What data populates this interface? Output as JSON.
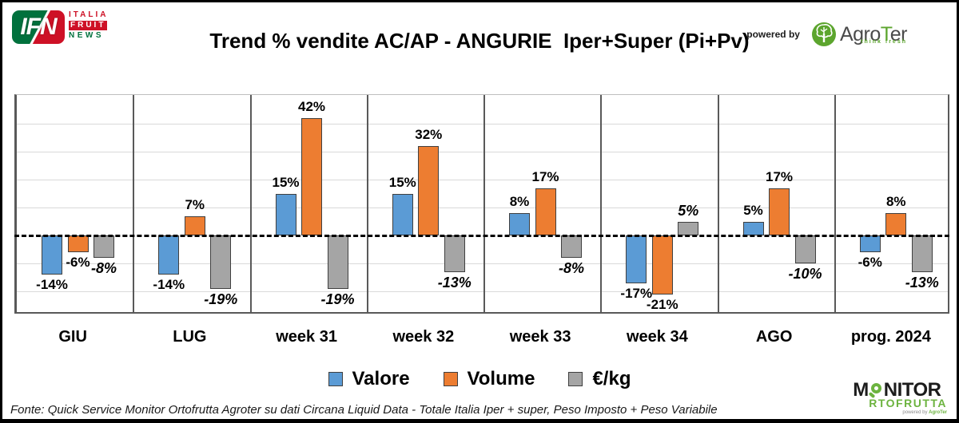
{
  "header": {
    "title": "Trend % vendite AC/AP - ANGURIE  Iper+Super (Pi+Pv)",
    "powered_by": "powered by",
    "ifn": {
      "abbr": "IFN",
      "line1": "ITALIA",
      "line2": "FRUIT",
      "line3": "NEWS"
    },
    "agroter": {
      "name_prefix": "Agro",
      "name_t": "T",
      "name_suffix": "er",
      "tagline": "think fresh"
    }
  },
  "chart_data": {
    "type": "bar",
    "title": "Trend % vendite AC/AP - ANGURIE  Iper+Super (Pi+Pv)",
    "categories": [
      "GIU",
      "LUG",
      "week 31",
      "week 32",
      "week 33",
      "week 34",
      "AGO",
      "prog. 2024"
    ],
    "series": [
      {
        "name": "Valore",
        "color": "#5B9BD5",
        "values": [
          -14,
          -14,
          15,
          15,
          8,
          -17,
          5,
          -6
        ]
      },
      {
        "name": "Volume",
        "color": "#ED7D31",
        "values": [
          -6,
          7,
          42,
          32,
          17,
          -21,
          17,
          8
        ]
      },
      {
        "name": "€/kg",
        "color": "#A5A5A5",
        "values": [
          -8,
          -19,
          -19,
          -13,
          -8,
          5,
          -10,
          -13
        ],
        "label_style": "italic"
      }
    ],
    "value_suffix": "%",
    "ylim": [
      -28,
      50
    ],
    "gridline_step": 10,
    "gridlines": [
      40,
      30,
      20,
      10,
      -10,
      -20
    ],
    "zero_line": "dashed",
    "grid": true,
    "legend_position": "bottom",
    "bar_border_color": "#404040"
  },
  "footer": {
    "source": "Fonte: Quick Service Monitor Ortofrutta Agroter su dati Circana Liquid Data - Totale Italia Iper + super, Peso Imposto + Peso Variabile"
  },
  "monitor": {
    "line1_m": "M",
    "line1_rest": "NITOR",
    "line2": "RTOFRUTTA",
    "powered_prefix": "powered by ",
    "powered_brand": "AgroTer"
  }
}
